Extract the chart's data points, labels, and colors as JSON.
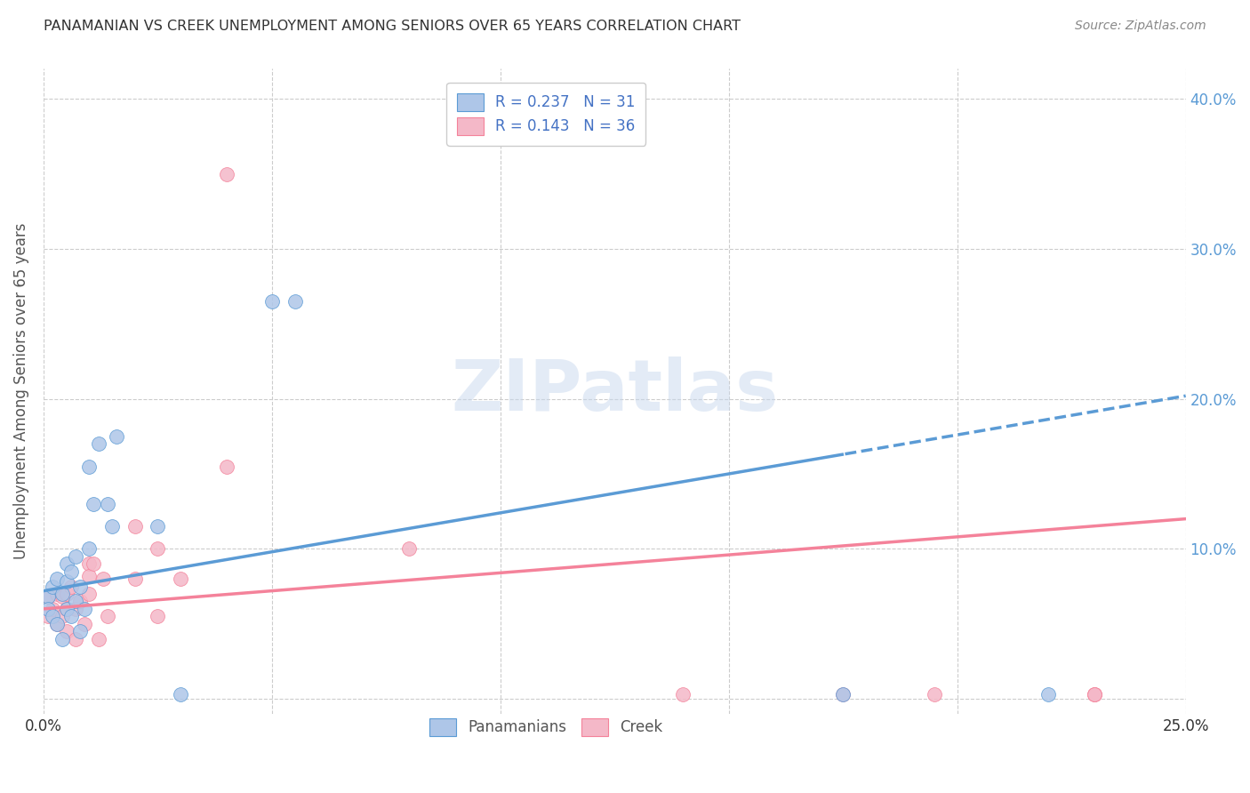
{
  "title": "PANAMANIAN VS CREEK UNEMPLOYMENT AMONG SENIORS OVER 65 YEARS CORRELATION CHART",
  "source": "Source: ZipAtlas.com",
  "ylabel": "Unemployment Among Seniors over 65 years",
  "xlim": [
    0.0,
    0.25
  ],
  "ylim": [
    -0.01,
    0.42
  ],
  "xticks": [
    0.0,
    0.05,
    0.1,
    0.15,
    0.2,
    0.25
  ],
  "xtick_labels": [
    "0.0%",
    "",
    "",
    "",
    "",
    "25.0%"
  ],
  "ytick_right_labels": [
    "",
    "10.0%",
    "20.0%",
    "30.0%",
    "40.0%"
  ],
  "ytick_right_vals": [
    0.0,
    0.1,
    0.2,
    0.3,
    0.4
  ],
  "legend1_label": "R = 0.237   N = 31",
  "legend2_label": "R = 0.143   N = 36",
  "legend1_color": "#aec6e8",
  "legend2_color": "#f4b8c8",
  "line1_color": "#5b9bd5",
  "line2_color": "#f4829a",
  "line1_intercept": 0.072,
  "line1_slope": 0.52,
  "line2_intercept": 0.06,
  "line2_slope": 0.24,
  "line1_solid_end": 0.175,
  "background_color": "#ffffff",
  "grid_color": "#cccccc",
  "watermark": "ZIPatlas",
  "pan_x": [
    0.001,
    0.001,
    0.002,
    0.002,
    0.003,
    0.003,
    0.004,
    0.004,
    0.005,
    0.005,
    0.005,
    0.006,
    0.006,
    0.007,
    0.007,
    0.008,
    0.008,
    0.009,
    0.01,
    0.01,
    0.011,
    0.012,
    0.014,
    0.015,
    0.016,
    0.025,
    0.03,
    0.05,
    0.055,
    0.175,
    0.22
  ],
  "pan_y": [
    0.068,
    0.06,
    0.075,
    0.055,
    0.08,
    0.05,
    0.07,
    0.04,
    0.09,
    0.078,
    0.06,
    0.085,
    0.055,
    0.095,
    0.065,
    0.075,
    0.045,
    0.06,
    0.155,
    0.1,
    0.13,
    0.17,
    0.13,
    0.115,
    0.175,
    0.115,
    0.003,
    0.265,
    0.265,
    0.003,
    0.003
  ],
  "creek_x": [
    0.001,
    0.001,
    0.002,
    0.003,
    0.003,
    0.004,
    0.004,
    0.005,
    0.005,
    0.005,
    0.006,
    0.007,
    0.007,
    0.008,
    0.009,
    0.01,
    0.01,
    0.01,
    0.011,
    0.012,
    0.013,
    0.014,
    0.02,
    0.02,
    0.025,
    0.025,
    0.03,
    0.04,
    0.08,
    0.14,
    0.175,
    0.195,
    0.23,
    0.23,
    0.23,
    0.04
  ],
  "creek_y": [
    0.068,
    0.055,
    0.06,
    0.07,
    0.05,
    0.068,
    0.055,
    0.06,
    0.045,
    0.07,
    0.075,
    0.06,
    0.04,
    0.065,
    0.05,
    0.09,
    0.082,
    0.07,
    0.09,
    0.04,
    0.08,
    0.055,
    0.115,
    0.08,
    0.1,
    0.055,
    0.08,
    0.155,
    0.1,
    0.003,
    0.003,
    0.003,
    0.003,
    0.003,
    0.003,
    0.35
  ]
}
